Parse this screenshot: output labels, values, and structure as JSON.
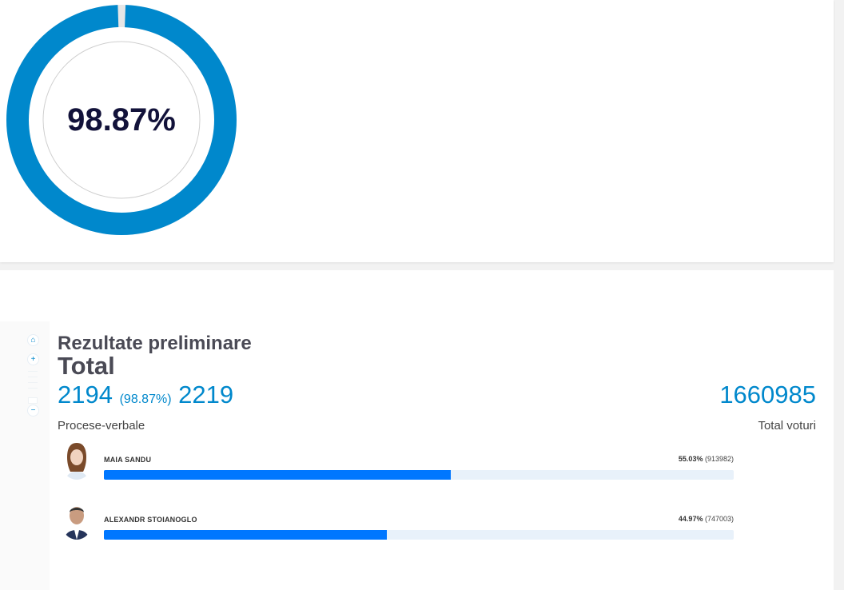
{
  "progress": {
    "percent_label": "98.87%",
    "value": 98.87,
    "color": "#0088cc",
    "rest_color": "#e6e6e6"
  },
  "results": {
    "title": "Rezultate preliminare",
    "subtitle": "Total",
    "processed": "2194",
    "processed_pct": "(98.87%)",
    "total_reports": "2219",
    "reports_label": "Procese-verbale",
    "total_votes": "1660985",
    "votes_label": "Total voturi",
    "candidates": [
      {
        "name": "MAIA SANDU",
        "pct": "55.03%",
        "votes": "(913982)",
        "value": 55.03
      },
      {
        "name": "ALEXANDR STOIANOGLO",
        "pct": "44.97%",
        "votes": "(747003)",
        "value": 44.97
      }
    ]
  },
  "zoom": {
    "home": "⌂",
    "plus": "+",
    "minus": "−"
  }
}
